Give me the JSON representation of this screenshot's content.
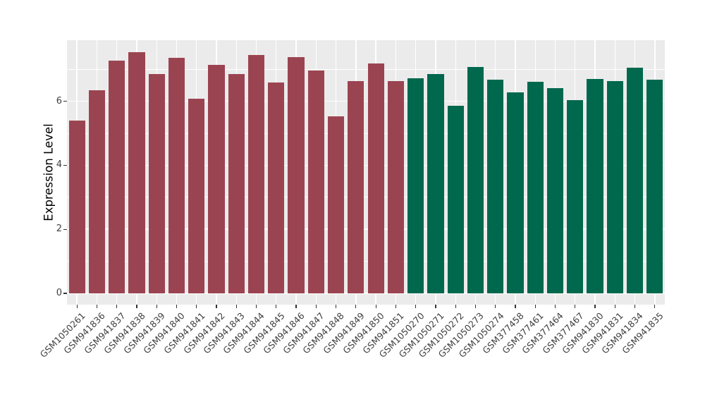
{
  "figure": {
    "background": "#FFFFFF",
    "panel_background": "#EBEBEB",
    "gridline_color": "#FFFFFF",
    "tick_mark_color": "#333333",
    "tick_label_color": "#404040",
    "axis_title_color": "#000000"
  },
  "chart_data": {
    "type": "bar",
    "title": "",
    "xlabel": "",
    "ylabel": "Expression Level",
    "ylim": [
      -0.35,
      7.9
    ],
    "yticks": [
      0,
      2,
      4,
      6
    ],
    "minor_gridlines": [
      1,
      3,
      5,
      7
    ],
    "grid": true,
    "legend_position": "none",
    "categories": [
      "GSM1050261",
      "GSM941836",
      "GSM941837",
      "GSM941838",
      "GSM941839",
      "GSM941840",
      "GSM941841",
      "GSM941842",
      "GSM941843",
      "GSM941844",
      "GSM941845",
      "GSM941846",
      "GSM941847",
      "GSM941848",
      "GSM941849",
      "GSM941850",
      "GSM941851",
      "GSM1050270",
      "GSM1050271",
      "GSM1050272",
      "GSM1050273",
      "GSM1050274",
      "GSM377458",
      "GSM377461",
      "GSM377464",
      "GSM377467",
      "GSM941830",
      "GSM941831",
      "GSM941834",
      "GSM941835"
    ],
    "values": [
      5.4,
      6.35,
      7.27,
      7.53,
      6.86,
      7.35,
      6.07,
      7.13,
      6.86,
      7.44,
      6.58,
      7.38,
      6.97,
      5.53,
      6.64,
      7.19,
      6.62,
      6.72,
      6.86,
      5.86,
      7.08,
      6.67,
      6.27,
      6.6,
      6.41,
      6.04,
      6.69,
      6.62,
      7.05,
      6.67
    ],
    "bar_groups": [
      {
        "name": "group-1",
        "color": "#9B4451",
        "from": 0,
        "to": 16
      },
      {
        "name": "group-2",
        "color": "#00684D",
        "from": 17,
        "to": 29
      }
    ]
  }
}
